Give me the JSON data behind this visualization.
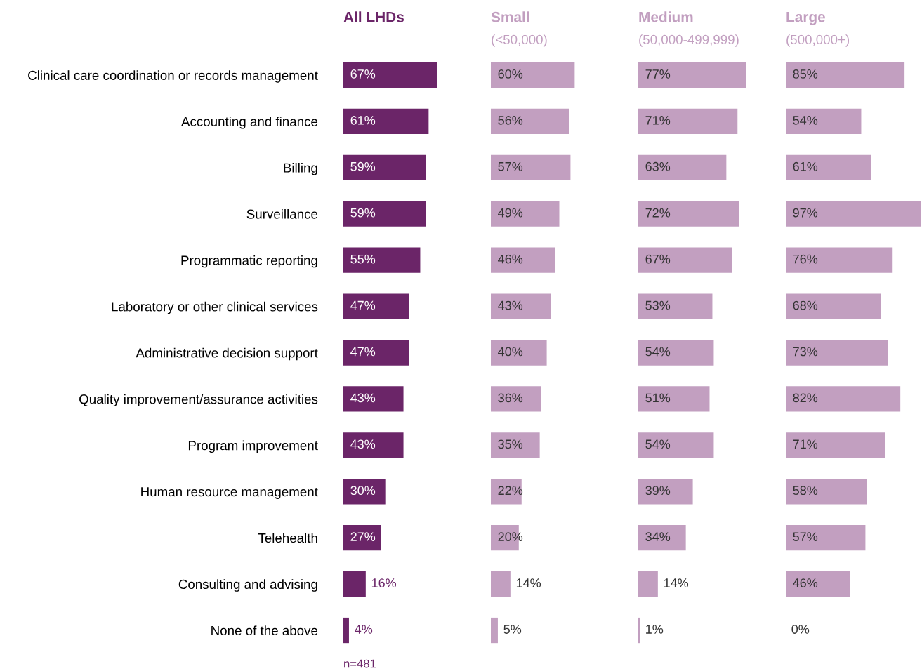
{
  "chart_data": [
    {
      "type": "bar",
      "orientation": "horizontal",
      "title": "All LHDs",
      "tick_labels": "y",
      "categories": [
        "Clinical care coordination or records management",
        "Accounting and finance",
        "Billing",
        "Surveillance",
        "Programmatic reporting",
        "Laboratory or other clinical services",
        "Administrative decision support",
        "Quality improvement/assurance activities",
        "Program improvement",
        "Human resource management",
        "Telehealth",
        "Consulting and advising",
        "None of the above"
      ],
      "series": [
        {
          "color": "#6b2568",
          "values": [
            67,
            61,
            59,
            59,
            55,
            47,
            47,
            43,
            43,
            30,
            27,
            16,
            4
          ],
          "value_labels": [
            "67%",
            "61%",
            "59%",
            "59%",
            "55%",
            "47%",
            "47%",
            "43%",
            "43%",
            "30%",
            "27%",
            "16%",
            "4%"
          ]
        }
      ],
      "annotations": [
        "n=481"
      ]
    },
    {
      "type": "bar",
      "orientation": "horizontal",
      "title": "Small",
      "subtitle": "(<50,000)",
      "tick_labels": false,
      "series": [
        {
          "color": "#c29fc0",
          "values": [
            60,
            56,
            57,
            49,
            46,
            43,
            40,
            36,
            35,
            22,
            20,
            14,
            5
          ],
          "value_labels": [
            "60%",
            "56%",
            "57%",
            "49%",
            "46%",
            "43%",
            "40%",
            "36%",
            "35%",
            "22%",
            "20%",
            "14%",
            "5%"
          ]
        }
      ]
    },
    {
      "type": "bar",
      "orientation": "horizontal",
      "title": "Medium",
      "subtitle": "(50,000-499,999)",
      "tick_labels": false,
      "series": [
        {
          "color": "#c29fc0",
          "values": [
            77,
            71,
            63,
            72,
            67,
            53,
            54,
            51,
            54,
            39,
            34,
            14,
            1
          ],
          "value_labels": [
            "77%",
            "71%",
            "63%",
            "72%",
            "67%",
            "53%",
            "54%",
            "51%",
            "54%",
            "39%",
            "34%",
            "14%",
            "1%"
          ]
        }
      ]
    },
    {
      "type": "bar",
      "orientation": "horizontal",
      "title": "Large",
      "subtitle": "(500,000+)",
      "tick_labels": false,
      "series": [
        {
          "color": "#c29fc0",
          "values": [
            85,
            54,
            61,
            97,
            76,
            68,
            73,
            82,
            71,
            58,
            57,
            46,
            0
          ],
          "value_labels": [
            "85%",
            "54%",
            "61%",
            "97%",
            "76%",
            "68%",
            "73%",
            "82%",
            "71%",
            "58%",
            "57%",
            "46%",
            "0%"
          ]
        }
      ]
    }
  ]
}
